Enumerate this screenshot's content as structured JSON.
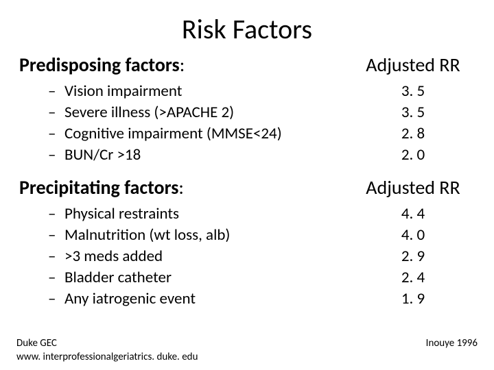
{
  "title": "Risk Factors",
  "colors": {
    "background": "#ffffff",
    "text": "#000000"
  },
  "typography": {
    "title_fontsize": 40,
    "section_fontsize": 28,
    "item_fontsize": 23,
    "footer_fontsize": 15,
    "font_family": "Calibri"
  },
  "section1": {
    "label_bold": "Predisposing factors",
    "label_suffix": ":",
    "rr_header": "Adjusted RR",
    "items": [
      {
        "text": "Vision impairment",
        "rr": "3. 5"
      },
      {
        "text": "Severe illness (>APACHE 2)",
        "rr": "3. 5"
      },
      {
        "text": "Cognitive impairment (MMSE<24)",
        "rr": "2. 8"
      },
      {
        "text": "BUN/Cr >18",
        "rr": "2. 0"
      }
    ]
  },
  "section2": {
    "label_bold": "Precipitating factors",
    "label_suffix": ":",
    "rr_header": "Adjusted RR",
    "items": [
      {
        "text": "Physical restraints",
        "rr": "4. 4"
      },
      {
        "text": "Malnutrition (wt loss, alb)",
        "rr": "4. 0"
      },
      {
        "text": ">3 meds added",
        "rr": "2. 9"
      },
      {
        "text": "Bladder catheter",
        "rr": "2. 4"
      },
      {
        "text": "Any iatrogenic event",
        "rr": "1. 9"
      }
    ]
  },
  "footer": {
    "left": "Duke GEC",
    "right": "Inouye 1996",
    "url": "www. interprofessionalgeriatrics. duke. edu"
  },
  "bullet": "–"
}
